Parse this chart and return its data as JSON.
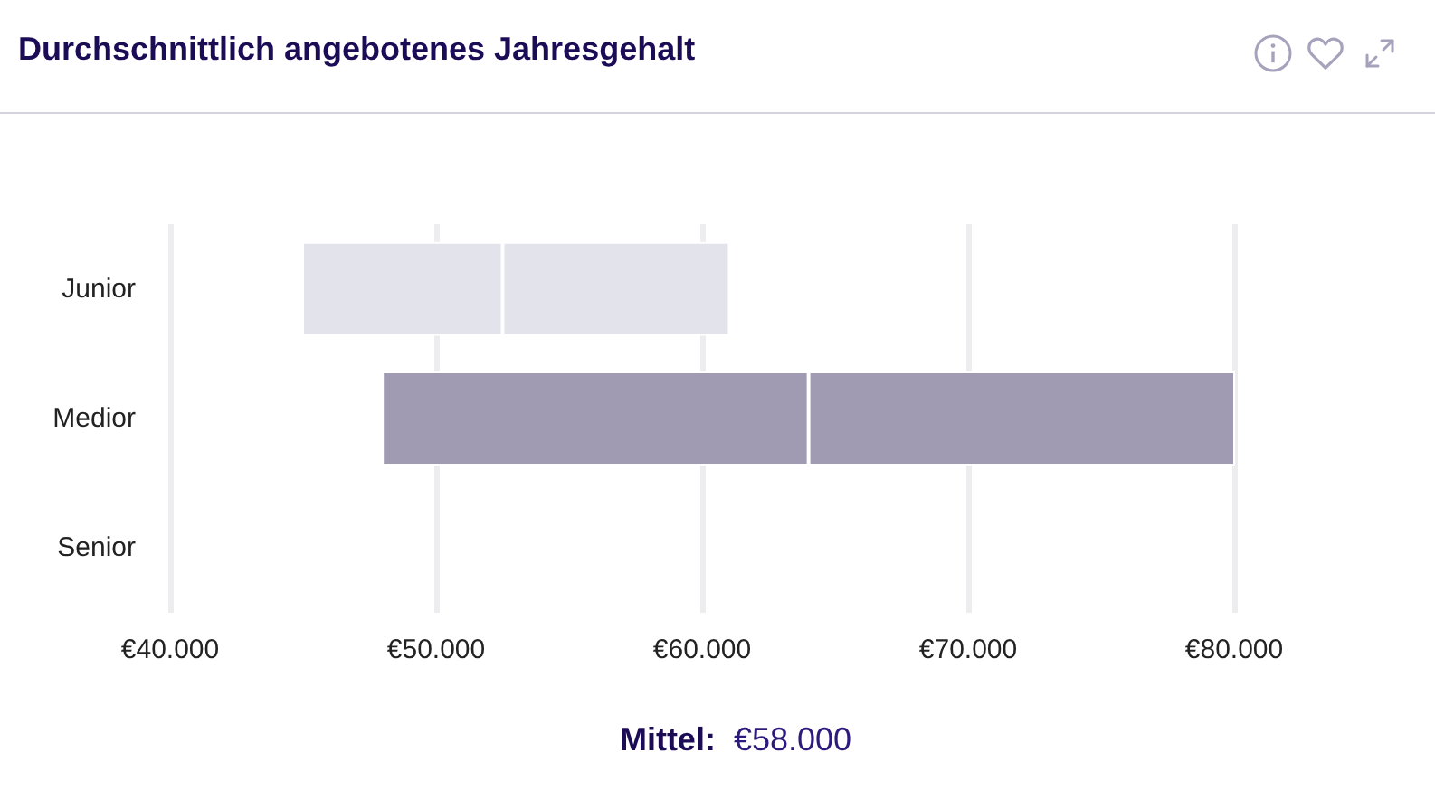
{
  "chart_data": {
    "type": "box",
    "title": "Durchschnittlich angebotenes Jahresgehalt",
    "orientation": "horizontal",
    "categories": [
      "Junior",
      "Medior",
      "Senior"
    ],
    "boxes": [
      {
        "low": 45000,
        "q1": 45000,
        "median": 52500,
        "q3": 61000,
        "high": 61000
      },
      {
        "low": 48000,
        "q1": 48000,
        "median": 64000,
        "q3": 80000,
        "high": 80000
      },
      null
    ],
    "colors": [
      "#e3e3ec",
      "#a09bb3",
      null
    ],
    "xlim": [
      40000,
      80000
    ],
    "xticks": [
      {
        "value": 40000,
        "label": "€40.000"
      },
      {
        "value": 50000,
        "label": "€50.000"
      },
      {
        "value": 60000,
        "label": "€60.000"
      },
      {
        "value": 70000,
        "label": "€70.000"
      },
      {
        "value": 80000,
        "label": "€80.000"
      }
    ],
    "grid": "x",
    "annotations": [
      "Mittel:",
      "€58.000"
    ]
  }
}
